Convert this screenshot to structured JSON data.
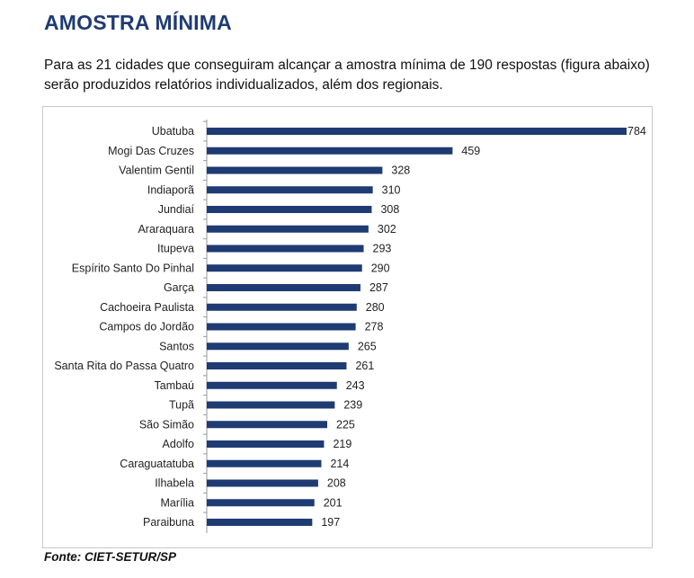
{
  "header": {
    "title": "AMOSTRA MÍNIMA",
    "description": "Para as 21 cidades que conseguiram alcançar a amostra mínima de 190 respostas (figura abaixo) serão produzidos relatórios individualizados, além dos regionais."
  },
  "footer": {
    "source": "Fonte: CIET-SETUR/SP"
  },
  "colors": {
    "bar": "#1f3b73",
    "axis": "#999999"
  },
  "chart_data": {
    "type": "bar",
    "orientation": "horizontal",
    "categories": [
      "Ubatuba",
      "Mogi Das Cruzes",
      "Valentim Gentil",
      "Indiaporã",
      "Jundiaí",
      "Araraquara",
      "Itupeva",
      "Espírito Santo Do Pinhal",
      "Garça",
      "Cachoeira Paulista",
      "Campos do Jordão",
      "Santos",
      "Santa Rita do Passa Quatro",
      "Tambaú",
      "Tupã",
      "São Simão",
      "Adolfo",
      "Caraguatatuba",
      "Ilhabela",
      "Marília",
      "Paraibuna"
    ],
    "values": [
      784,
      459,
      328,
      310,
      308,
      302,
      293,
      290,
      287,
      280,
      278,
      265,
      261,
      243,
      239,
      225,
      219,
      214,
      208,
      201,
      197
    ],
    "xlim": [
      0,
      784
    ],
    "grid": false,
    "data_labels": true,
    "title": "",
    "xlabel": "",
    "ylabel": ""
  }
}
